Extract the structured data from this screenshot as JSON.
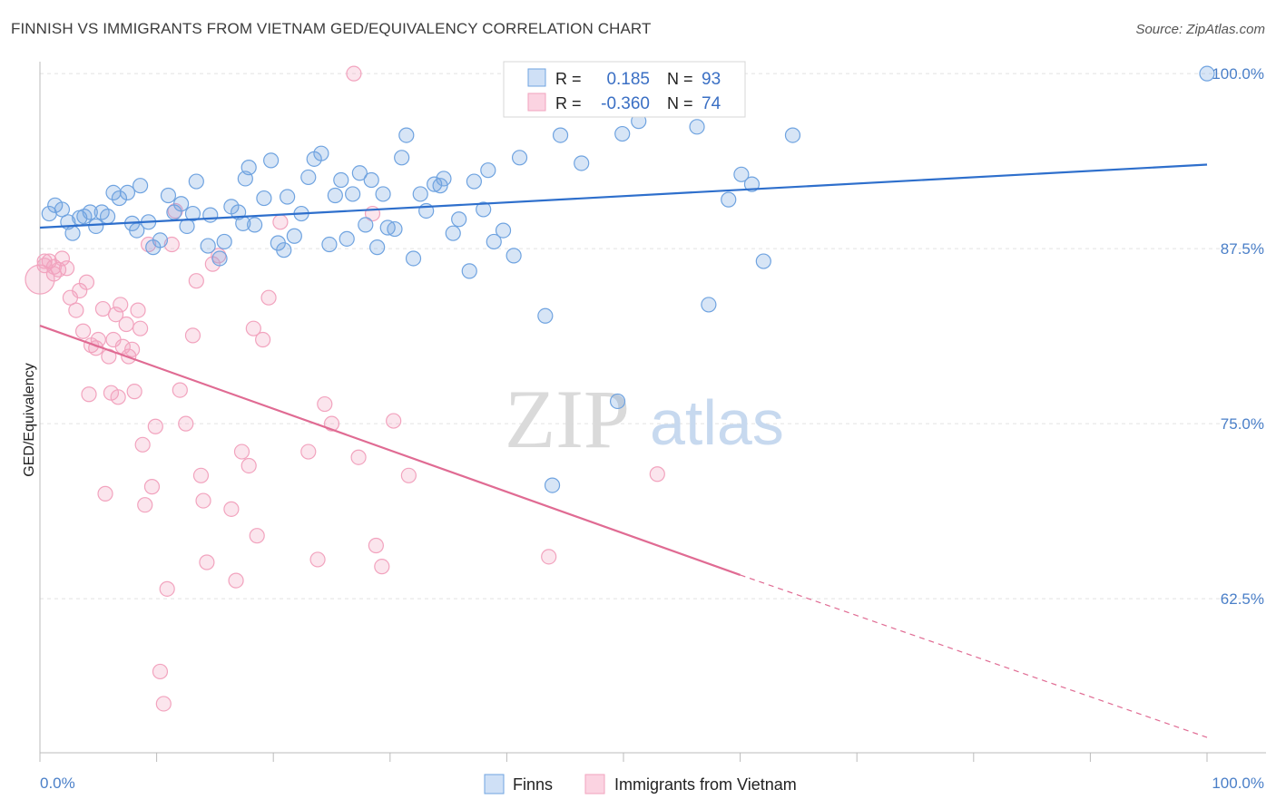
{
  "header": {
    "title": "FINNISH VS IMMIGRANTS FROM VIETNAM GED/EQUIVALENCY CORRELATION CHART",
    "source": "Source: ZipAtlas.com"
  },
  "watermark": {
    "zip": "ZIP",
    "atlas": "atlas"
  },
  "legend_top": {
    "rows": [
      {
        "r_label": "R =",
        "r_value": "0.185",
        "n_label": "N =",
        "n_value": "93",
        "color": "#6fa3e0"
      },
      {
        "r_label": "R =",
        "r_value": "-0.360",
        "n_label": "N =",
        "n_value": "74",
        "color": "#f2a3be"
      }
    ]
  },
  "legend_bottom": {
    "items": [
      "Finns",
      "Immigrants from Vietnam"
    ]
  },
  "chart_data": {
    "type": "scatter",
    "xlabel": "",
    "ylabel": "GED/Equivalency",
    "xlim": [
      0,
      100
    ],
    "ylim": [
      51.5,
      101.5
    ],
    "x_tick_labels": [
      "0.0%",
      "100.0%"
    ],
    "y_ticks": [
      62.5,
      75.0,
      87.5,
      100.0
    ],
    "y_tick_labels": [
      "62.5%",
      "75.0%",
      "87.5%",
      "100.0%"
    ],
    "grid": true,
    "colors": {
      "finns": "#6fa3e0",
      "finns_line": "#2e6fcc",
      "vietnam": "#f2a3be",
      "vietnam_line": "#e06b93"
    },
    "series": [
      {
        "name": "Finns",
        "trend": {
          "x0": 0,
          "y0": 89.0,
          "x1": 100,
          "y1": 93.5
        },
        "points": [
          [
            0.8,
            90.0
          ],
          [
            1.3,
            90.6
          ],
          [
            1.9,
            90.3
          ],
          [
            2.4,
            89.4
          ],
          [
            2.8,
            88.6
          ],
          [
            3.4,
            89.7
          ],
          [
            3.8,
            89.8
          ],
          [
            4.3,
            90.1
          ],
          [
            4.8,
            89.1
          ],
          [
            5.3,
            90.1
          ],
          [
            5.8,
            89.8
          ],
          [
            6.3,
            91.5
          ],
          [
            6.8,
            91.1
          ],
          [
            7.5,
            91.5
          ],
          [
            7.9,
            89.3
          ],
          [
            8.3,
            88.8
          ],
          [
            8.6,
            92.0
          ],
          [
            9.3,
            89.4
          ],
          [
            9.7,
            87.6
          ],
          [
            10.3,
            88.1
          ],
          [
            11.0,
            91.3
          ],
          [
            11.5,
            90.1
          ],
          [
            12.1,
            90.7
          ],
          [
            12.6,
            89.1
          ],
          [
            13.1,
            90.0
          ],
          [
            13.4,
            92.3
          ],
          [
            14.4,
            87.7
          ],
          [
            14.6,
            89.9
          ],
          [
            15.4,
            86.8
          ],
          [
            15.8,
            88.0
          ],
          [
            16.4,
            90.5
          ],
          [
            17.0,
            90.1
          ],
          [
            17.4,
            89.3
          ],
          [
            17.6,
            92.5
          ],
          [
            17.9,
            93.3
          ],
          [
            19.2,
            91.1
          ],
          [
            18.4,
            89.2
          ],
          [
            19.8,
            93.8
          ],
          [
            20.4,
            87.9
          ],
          [
            20.9,
            87.4
          ],
          [
            21.2,
            91.2
          ],
          [
            21.8,
            88.4
          ],
          [
            22.4,
            90.0
          ],
          [
            23.0,
            92.6
          ],
          [
            23.5,
            93.9
          ],
          [
            24.1,
            94.3
          ],
          [
            24.8,
            87.8
          ],
          [
            25.3,
            91.3
          ],
          [
            25.8,
            92.4
          ],
          [
            26.3,
            88.2
          ],
          [
            26.8,
            91.4
          ],
          [
            27.4,
            92.9
          ],
          [
            27.9,
            89.2
          ],
          [
            28.4,
            92.4
          ],
          [
            28.9,
            87.6
          ],
          [
            29.4,
            91.4
          ],
          [
            29.8,
            89.0
          ],
          [
            30.4,
            88.9
          ],
          [
            31.0,
            94.0
          ],
          [
            31.4,
            95.6
          ],
          [
            32.0,
            86.8
          ],
          [
            32.6,
            91.4
          ],
          [
            33.1,
            90.2
          ],
          [
            33.8,
            92.1
          ],
          [
            34.3,
            92.0
          ],
          [
            34.6,
            92.5
          ],
          [
            35.4,
            88.6
          ],
          [
            35.9,
            89.6
          ],
          [
            36.8,
            85.9
          ],
          [
            37.2,
            92.3
          ],
          [
            38.0,
            90.3
          ],
          [
            38.4,
            93.1
          ],
          [
            38.9,
            88.0
          ],
          [
            39.7,
            88.8
          ],
          [
            40.6,
            87.0
          ],
          [
            41.1,
            94.0
          ],
          [
            43.3,
            82.7
          ],
          [
            43.9,
            70.6
          ],
          [
            44.6,
            95.6
          ],
          [
            46.4,
            93.6
          ],
          [
            49.5,
            76.6
          ],
          [
            49.9,
            95.7
          ],
          [
            51.3,
            96.6
          ],
          [
            54.2,
            100.0
          ],
          [
            54.6,
            100.1
          ],
          [
            56.3,
            96.2
          ],
          [
            57.3,
            83.5
          ],
          [
            59.0,
            91.0
          ],
          [
            60.1,
            92.8
          ],
          [
            61.0,
            92.1
          ],
          [
            62.0,
            86.6
          ],
          [
            64.5,
            95.6
          ],
          [
            100.0,
            100.0
          ]
        ]
      },
      {
        "name": "Immigrants from Vietnam",
        "trend": {
          "x0": 0,
          "y0": 82.0,
          "x1": 60,
          "y1": 64.2
        },
        "trend_dashed": {
          "x0": 60,
          "y0": 64.2,
          "x1": 100,
          "y1": 52.6
        },
        "points": [
          [
            0.0,
            85.3
          ],
          [
            0.4,
            86.3
          ],
          [
            0.8,
            86.6
          ],
          [
            1.2,
            86.2
          ],
          [
            1.6,
            86.0
          ],
          [
            1.9,
            86.8
          ],
          [
            2.3,
            86.1
          ],
          [
            2.6,
            84.0
          ],
          [
            3.1,
            83.1
          ],
          [
            3.4,
            84.5
          ],
          [
            3.7,
            81.6
          ],
          [
            4.0,
            85.1
          ],
          [
            4.2,
            77.1
          ],
          [
            4.4,
            80.6
          ],
          [
            4.8,
            80.4
          ],
          [
            5.0,
            81.0
          ],
          [
            5.4,
            83.2
          ],
          [
            5.6,
            70.0
          ],
          [
            5.9,
            79.8
          ],
          [
            6.1,
            77.2
          ],
          [
            6.3,
            81.0
          ],
          [
            6.5,
            82.8
          ],
          [
            6.7,
            76.9
          ],
          [
            6.9,
            83.5
          ],
          [
            7.1,
            80.5
          ],
          [
            7.4,
            82.1
          ],
          [
            7.6,
            79.8
          ],
          [
            7.9,
            80.3
          ],
          [
            8.1,
            77.3
          ],
          [
            8.4,
            83.1
          ],
          [
            8.6,
            81.8
          ],
          [
            8.8,
            73.5
          ],
          [
            9.0,
            69.2
          ],
          [
            9.3,
            87.8
          ],
          [
            9.6,
            70.5
          ],
          [
            9.9,
            74.8
          ],
          [
            10.3,
            57.3
          ],
          [
            10.6,
            55.0
          ],
          [
            10.9,
            63.2
          ],
          [
            11.3,
            87.8
          ],
          [
            11.6,
            90.2
          ],
          [
            12.0,
            77.4
          ],
          [
            12.5,
            75.0
          ],
          [
            13.1,
            81.3
          ],
          [
            13.4,
            85.2
          ],
          [
            13.8,
            71.3
          ],
          [
            14.0,
            69.5
          ],
          [
            14.3,
            65.1
          ],
          [
            14.8,
            86.4
          ],
          [
            15.3,
            87.0
          ],
          [
            16.4,
            68.9
          ],
          [
            16.8,
            63.8
          ],
          [
            17.3,
            73.0
          ],
          [
            17.9,
            72.0
          ],
          [
            18.3,
            81.8
          ],
          [
            18.6,
            67.0
          ],
          [
            19.1,
            81.0
          ],
          [
            19.6,
            84.0
          ],
          [
            20.6,
            89.4
          ],
          [
            23.0,
            73.0
          ],
          [
            23.8,
            65.3
          ],
          [
            24.4,
            76.4
          ],
          [
            25.0,
            75.0
          ],
          [
            26.9,
            100.0
          ],
          [
            27.3,
            72.6
          ],
          [
            28.5,
            90.0
          ],
          [
            28.8,
            66.3
          ],
          [
            29.3,
            64.8
          ],
          [
            30.3,
            75.2
          ],
          [
            31.6,
            71.3
          ],
          [
            43.6,
            65.5
          ],
          [
            52.9,
            71.4
          ],
          [
            0.4,
            86.6
          ],
          [
            1.2,
            85.7
          ]
        ]
      }
    ]
  }
}
